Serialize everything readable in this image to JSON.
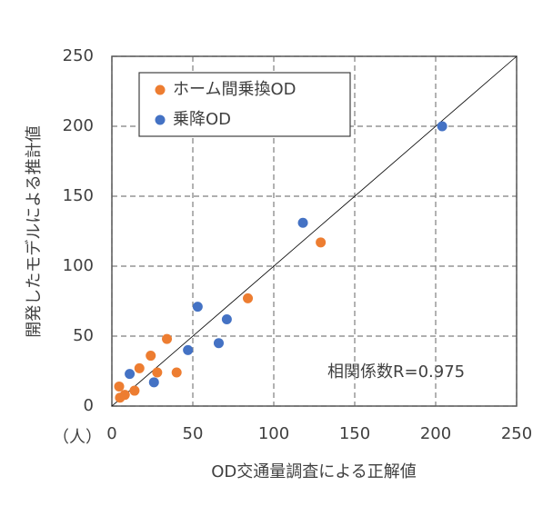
{
  "chart_data": {
    "type": "scatter",
    "x_label": "OD交通量調査による正解値",
    "y_label": "開発したモデルによる推計値",
    "unit_label": "（人）",
    "annotation": "相関係数R=0.975",
    "xlim": [
      0,
      250
    ],
    "ylim": [
      0,
      250
    ],
    "xticks": [
      0,
      50,
      100,
      150,
      200,
      250
    ],
    "yticks": [
      0,
      50,
      100,
      150,
      200,
      250
    ],
    "grid": true,
    "reference_line": true,
    "series": [
      {
        "name": "ホーム間乗換OD",
        "color": "#ed7d31",
        "x": [
          4.5,
          5,
          8,
          14,
          17,
          24,
          28,
          34,
          40,
          84,
          129
        ],
        "values": [
          14,
          6,
          8,
          11,
          27,
          36,
          24,
          48,
          24,
          77,
          117
        ]
      },
      {
        "name": "乗降OD",
        "color": "#4472c4",
        "x": [
          11,
          26,
          47,
          53,
          66,
          71,
          118,
          204
        ],
        "values": [
          23,
          17,
          40,
          71,
          45,
          62,
          131,
          200
        ]
      }
    ]
  }
}
